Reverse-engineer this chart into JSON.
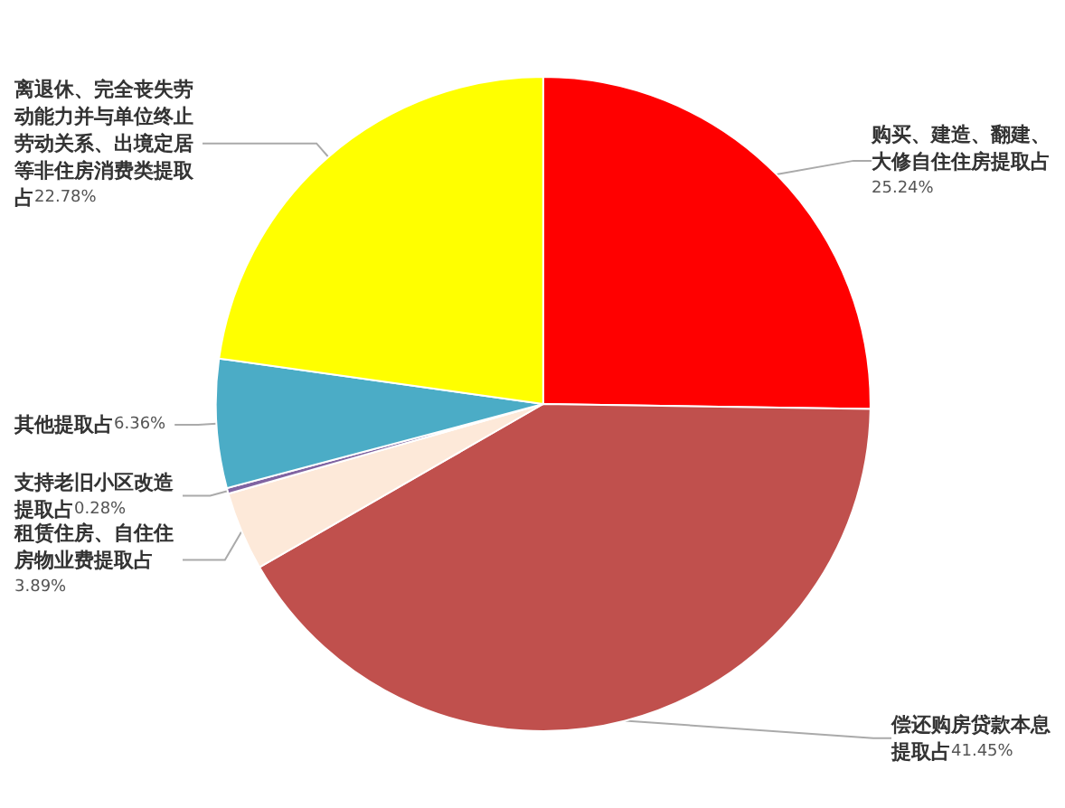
{
  "chart_data": {
    "type": "pie",
    "categories": [
      "购买、建造、翻建、大修自住住房提取占",
      "偿还购房贷款本息提取占",
      "租赁住房、自住住房物业费提取占",
      "支持老旧小区改造提取占",
      "其他提取占",
      "离退休、完全丧失劳动能力并与单位终止劳动关系、出境定居等非住房消费类提取占"
    ],
    "values": [
      25.24,
      41.45,
      3.89,
      0.28,
      6.36,
      22.78
    ],
    "colors": [
      "#ff0000",
      "#c0504d",
      "#fde9d9",
      "#8064a2",
      "#4bacc6",
      "#ffff00"
    ],
    "value_labels": [
      "25.24%",
      "41.45%",
      "3.89%",
      "0.28%",
      "6.36%",
      "22.78%"
    ]
  }
}
